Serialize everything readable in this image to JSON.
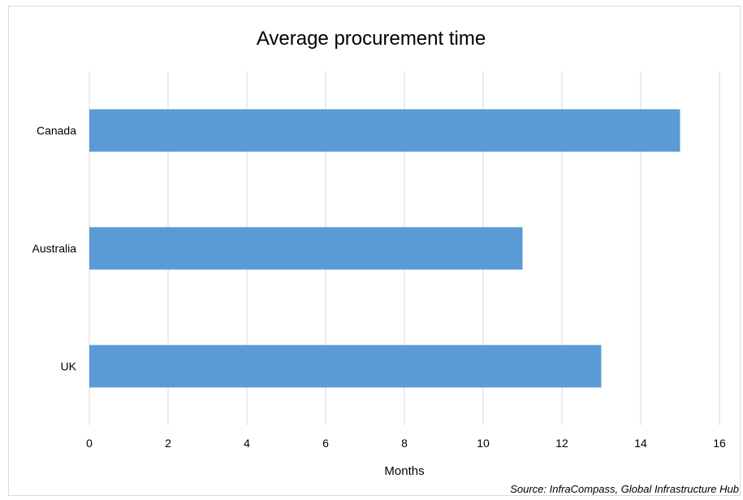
{
  "chart_data": {
    "type": "bar",
    "orientation": "horizontal",
    "title": "Average procurement time",
    "xlabel": "Months",
    "ylabel": "",
    "categories": [
      "Canada",
      "Australia",
      "UK"
    ],
    "values": [
      15,
      11,
      13
    ],
    "xlim": [
      0,
      16
    ],
    "x_ticks": [
      "0",
      "2",
      "4",
      "6",
      "8",
      "10",
      "12",
      "14",
      "16"
    ],
    "grid": "vertical",
    "legend": "none",
    "bar_color": "#5b9bd5",
    "gridline_color": "#d9d9d9",
    "source": "Source: InfraCompass, Global Infrastructure Hub"
  }
}
